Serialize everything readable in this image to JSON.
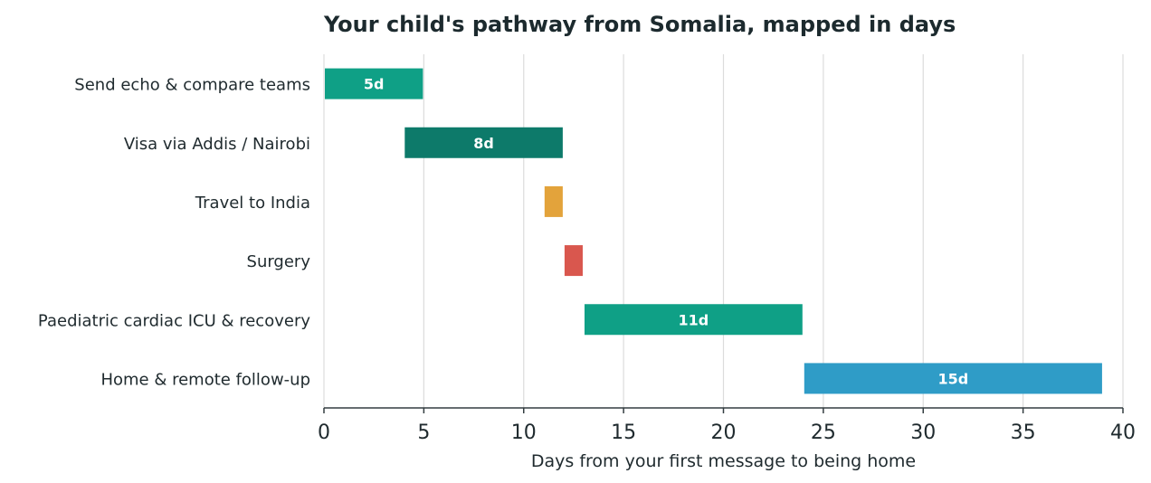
{
  "chart_data": {
    "type": "bar",
    "orientation": "horizontal-gantt",
    "title": "Your child's pathway from Somalia, mapped in days",
    "xlabel": "Days from your first message to being home",
    "ylabel": "",
    "xlim": [
      0,
      40
    ],
    "xticks": [
      0,
      5,
      10,
      15,
      20,
      25,
      30,
      35,
      40
    ],
    "grid": "vertical",
    "tasks": [
      {
        "name": "Send echo & compare teams",
        "start": 0,
        "duration": 5,
        "label": "5d",
        "color": "#0fa086"
      },
      {
        "name": "Visa via Addis / Nairobi",
        "start": 4,
        "duration": 8,
        "label": "8d",
        "color": "#0d7a6a"
      },
      {
        "name": "Travel to India",
        "start": 11,
        "duration": 1,
        "label": "",
        "color": "#e3a33b"
      },
      {
        "name": "Surgery",
        "start": 12,
        "duration": 1,
        "label": "",
        "color": "#d9574e"
      },
      {
        "name": "Paediatric cardiac ICU & recovery",
        "start": 13,
        "duration": 11,
        "label": "11d",
        "color": "#0fa086"
      },
      {
        "name": "Home & remote follow-up",
        "start": 24,
        "duration": 15,
        "label": "15d",
        "color": "#2f9cc7"
      }
    ]
  }
}
